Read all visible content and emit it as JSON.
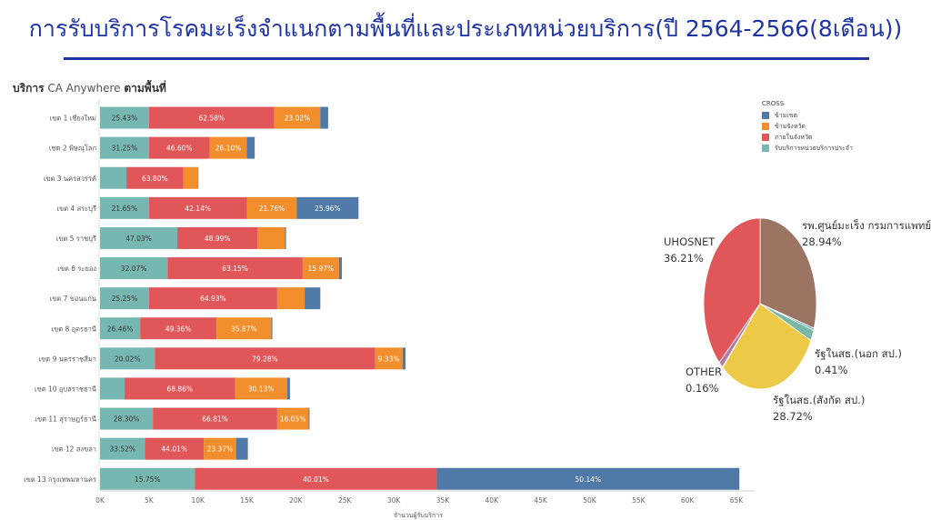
{
  "page": {
    "title": "การรับบริการโรคมะเร็งจำแนกตามพื้นที่และประเภทหน่วยบริการ(ปี 2564-2566(8เดือน))",
    "heading_bold": "บริการ",
    "heading_accent": "CA Anywhere",
    "heading_rest": "ตามพื้นที่"
  },
  "colors": {
    "title": "#1f35a6",
    "cross_zone": "#4f79a7",
    "cross_province": "#f28e2b",
    "in_province": "#e15759",
    "primary_unit": "#76b7b2"
  },
  "chart_data": [
    {
      "type": "bar",
      "orientation": "horizontal",
      "stacked": true,
      "xlabel": "จำนวนผู้รับบริการ",
      "xlim": [
        0,
        65000
      ],
      "xticks": [
        "0K",
        "5K",
        "10K",
        "15K",
        "20K",
        "25K",
        "30K",
        "35K",
        "40K",
        "45K",
        "50K",
        "55K",
        "60K",
        "65K"
      ],
      "legend_title": "CROSS",
      "legend_position": "top-right",
      "categories": [
        "เขต 1 เชียงใหม่",
        "เขต 2 พิษณุโลก",
        "เขต 3 นครสวรรค์",
        "เขต 4 สระบุรี",
        "เขต 5 ราชบุรี",
        "เขต 6 ระยอง",
        "เขต 7 ขอนแก่น",
        "เขต 8 อุดรธานี",
        "เขต 9 นครราชสีมา",
        "เขต 10 อุบลราชธานี",
        "เขต 11 สุราษฎร์ธานี",
        "เขต 12 สงขลา",
        "เขต 13 กรุงเทพมหานคร"
      ],
      "series": [
        {
          "name": "รับบริการหน่วยบริการประจำ",
          "color": "#76b7b2",
          "values": [
            5000,
            5000,
            2700,
            5000,
            7900,
            6900,
            5000,
            4100,
            5600,
            2500,
            5400,
            4600,
            9700
          ],
          "labels": [
            "25.43%",
            "31.25%",
            "",
            "21.65%",
            "47.03%",
            "32.07%",
            "25.25%",
            "26.46%",
            "20.02%",
            "",
            "28.30%",
            "33.52%",
            "15.75%"
          ]
        },
        {
          "name": "ภายในจังหวัด",
          "color": "#e15759",
          "values": [
            12800,
            6200,
            5800,
            10000,
            8200,
            13800,
            13100,
            7800,
            22500,
            11300,
            12700,
            6000,
            24700
          ],
          "labels": [
            "62.58%",
            "46.60%",
            "63.80%",
            "42.14%",
            "48.99%",
            "63.15%",
            "64.93%",
            "49.36%",
            "79.28%",
            "68.86%",
            "66.81%",
            "44.01%",
            "40.01%"
          ]
        },
        {
          "name": "ข้ามจังหวัด",
          "color": "#f28e2b",
          "values": [
            4700,
            3800,
            1500,
            5100,
            2800,
            3700,
            2800,
            5600,
            2800,
            5300,
            3200,
            3300,
            0
          ],
          "labels": [
            "23.02%",
            "26.10%",
            "",
            "21.76%",
            "",
            "15.97%",
            "",
            "35.87%",
            "9.33%",
            "30.13%",
            "16.05%",
            "23.37%",
            ""
          ]
        },
        {
          "name": "ข้ามเขต",
          "color": "#4f79a7",
          "values": [
            800,
            800,
            50,
            6300,
            100,
            300,
            1600,
            100,
            300,
            300,
            100,
            1200,
            30900
          ],
          "labels": [
            "",
            "",
            "",
            "25.96%",
            "",
            "",
            "",
            "",
            "",
            "",
            "",
            "",
            "50.14%"
          ]
        }
      ]
    },
    {
      "type": "pie",
      "slices": [
        {
          "name": "รพ.ศูนย์มะเร็ง กรมการแพทย์",
          "value": 28.94,
          "label": "28.94%",
          "color": "#9c7562"
        },
        {
          "name": "รัฐในสธ.(นอก สป.)",
          "value": 0.41,
          "label": "0.41%",
          "color": "#76b7b2"
        },
        {
          "name": "",
          "value": 2.0,
          "label": "",
          "color": "#79b7a8"
        },
        {
          "name": "รัฐในสธ.(สังกัด สป.)",
          "value": 28.72,
          "label": "28.72%",
          "color": "#edc948"
        },
        {
          "name": "OTHER",
          "value": 0.16,
          "label": "0.16%",
          "color": "#b07aa1"
        },
        {
          "name": "",
          "value": 1.2,
          "label": "",
          "color": "#b07aa1"
        },
        {
          "name": "UHOSNET",
          "value": 36.21,
          "label": "36.21%",
          "color": "#e15759"
        }
      ]
    }
  ]
}
